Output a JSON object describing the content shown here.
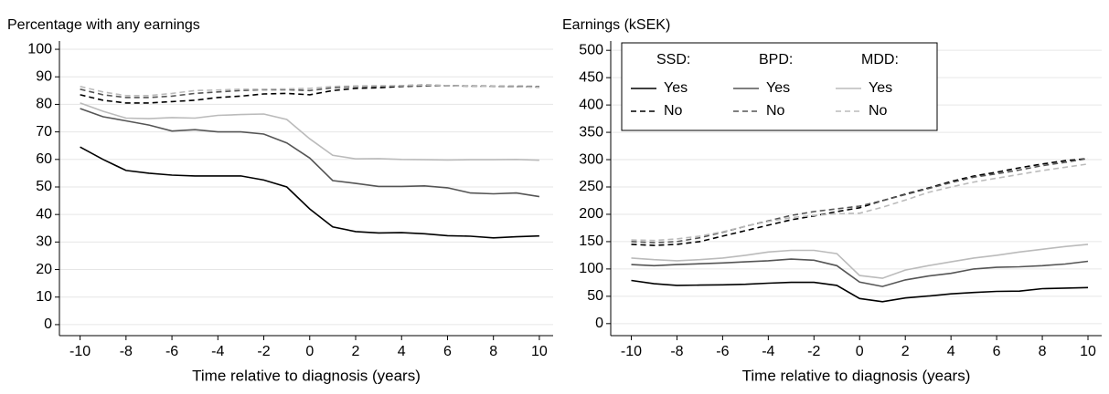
{
  "chart_data": [
    {
      "type": "line",
      "title": "Percentage with any earnings",
      "x_label": "Time relative to diagnosis (years)",
      "x": [
        -10,
        -9,
        -8,
        -7,
        -6,
        -5,
        -4,
        -3,
        -2,
        -1,
        0,
        1,
        2,
        3,
        4,
        5,
        6,
        7,
        8,
        9,
        10
      ],
      "xlim": [
        -10.9,
        10.6
      ],
      "xticks": [
        -10,
        -8,
        -6,
        -4,
        -2,
        0,
        2,
        4,
        6,
        8,
        10
      ],
      "ylim": [
        -4,
        103
      ],
      "yticks": [
        0,
        10,
        20,
        30,
        40,
        50,
        60,
        70,
        80,
        90,
        100
      ],
      "grid": true,
      "groups": [
        {
          "series": [
            {
              "color": "#000000",
              "line_style": "solid",
              "values": [
                64.5,
                60,
                56,
                55,
                54.3,
                54,
                54,
                54,
                52.5,
                50,
                42,
                35.5,
                33.8,
                33.3,
                33.4,
                33,
                32.3,
                32.1,
                31.5,
                31.9,
                32.2
              ]
            },
            {
              "color": "#000000",
              "line_style": "dashed",
              "values": [
                83.5,
                81.5,
                80.5,
                80.5,
                81,
                81.5,
                82.5,
                83,
                83.8,
                84,
                83.5,
                85,
                85.8,
                86,
                86.5,
                86.7,
                86.8,
                86.6,
                86.5,
                86.4,
                86.3
              ]
            }
          ]
        },
        {
          "series": [
            {
              "color": "#555555",
              "line_style": "solid",
              "values": [
                78.5,
                75.5,
                74,
                72.5,
                70.3,
                70.8,
                70,
                70,
                69.2,
                66,
                60.5,
                52.3,
                51.3,
                50.2,
                50.2,
                50.4,
                49.7,
                47.8,
                47.5,
                47.8,
                46.5
              ]
            },
            {
              "color": "#555555",
              "line_style": "dashed",
              "values": [
                85.5,
                83.5,
                82.5,
                82.5,
                83,
                84,
                84.5,
                85,
                85.3,
                85.3,
                85,
                86,
                86.5,
                86.5,
                86.8,
                87,
                86.8,
                86.7,
                86.6,
                86.6,
                86.5
              ]
            }
          ]
        },
        {
          "series": [
            {
              "color": "#bbbbbb",
              "line_style": "solid",
              "values": [
                80.5,
                77.5,
                75,
                74.8,
                75.2,
                75,
                76,
                76.3,
                76.5,
                74.5,
                67.5,
                61.5,
                60.2,
                60.3,
                60,
                59.9,
                59.8,
                59.9,
                59.9,
                60,
                59.7
              ]
            },
            {
              "color": "#bbbbbb",
              "line_style": "dashed",
              "values": [
                86.5,
                84.5,
                83.2,
                83.2,
                84,
                85,
                85.2,
                85.5,
                85.5,
                85.6,
                85.8,
                86.5,
                86.7,
                86.8,
                86.8,
                86.9,
                86.8,
                86.6,
                86.5,
                86.4,
                86.3
              ]
            }
          ]
        }
      ]
    },
    {
      "type": "line",
      "title": "Earnings (kSEK)",
      "x_label": "Time relative to diagnosis (years)",
      "x": [
        -10,
        -9,
        -8,
        -7,
        -6,
        -5,
        -4,
        -3,
        -2,
        -1,
        0,
        1,
        2,
        3,
        4,
        5,
        6,
        7,
        8,
        9,
        10
      ],
      "xlim": [
        -10.9,
        10.6
      ],
      "xticks": [
        -10,
        -8,
        -6,
        -4,
        -2,
        0,
        2,
        4,
        6,
        8,
        10
      ],
      "ylim": [
        -22,
        517
      ],
      "yticks": [
        0,
        50,
        100,
        150,
        200,
        250,
        300,
        350,
        400,
        450,
        500
      ],
      "grid": true,
      "legend": "top-left",
      "groups": [
        {
          "name": "SSD:",
          "series": [
            {
              "name": "Yes",
              "color": "#000000",
              "line_style": "solid",
              "values": [
                79,
                73,
                70,
                70.5,
                71,
                72,
                74,
                75.5,
                75.5,
                70,
                46,
                40,
                47,
                50.5,
                54.5,
                57,
                59,
                59.5,
                64,
                65,
                66
              ]
            },
            {
              "name": "No",
              "color": "#000000",
              "line_style": "dashed",
              "values": [
                145,
                143,
                145,
                150,
                160,
                170,
                180,
                190,
                197,
                205,
                212,
                225,
                237,
                248,
                260,
                270,
                277,
                285,
                292,
                298,
                302
              ]
            }
          ]
        },
        {
          "name": "BPD:",
          "series": [
            {
              "name": "Yes",
              "color": "#555555",
              "line_style": "solid",
              "values": [
                108,
                106,
                108,
                109.5,
                111,
                113,
                115,
                118,
                116,
                106,
                76,
                68,
                80,
                87,
                92,
                100,
                103,
                104,
                106,
                109,
                114
              ]
            },
            {
              "name": "No",
              "color": "#555555",
              "line_style": "dashed",
              "values": [
                150,
                148,
                150,
                157,
                167,
                178,
                188,
                198,
                205,
                210,
                215,
                225,
                236,
                247,
                258,
                268,
                274,
                281,
                289,
                295,
                302
              ]
            }
          ]
        },
        {
          "name": "MDD:",
          "series": [
            {
              "name": "Yes",
              "color": "#bbbbbb",
              "line_style": "solid",
              "values": [
                120,
                117,
                115,
                117,
                120,
                125,
                131,
                134,
                134,
                128,
                88,
                83,
                98,
                106,
                113,
                120,
                125,
                131,
                136,
                141,
                145
              ]
            },
            {
              "name": "No",
              "color": "#bbbbbb",
              "line_style": "dashed",
              "values": [
                153,
                152,
                155,
                160,
                168,
                178,
                187,
                194,
                198,
                201,
                202,
                213,
                226,
                240,
                250,
                259,
                266,
                273,
                280,
                286,
                292
              ]
            }
          ]
        }
      ]
    }
  ]
}
